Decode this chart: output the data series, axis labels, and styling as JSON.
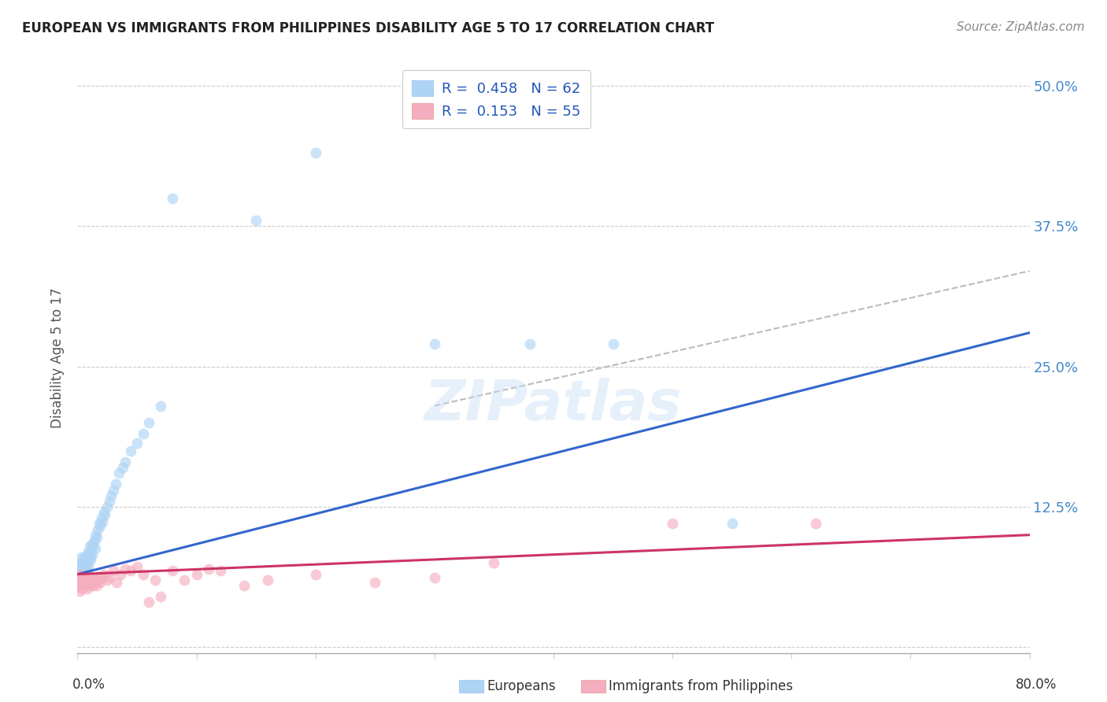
{
  "title": "EUROPEAN VS IMMIGRANTS FROM PHILIPPINES DISABILITY AGE 5 TO 17 CORRELATION CHART",
  "source": "Source: ZipAtlas.com",
  "ylabel": "Disability Age 5 to 17",
  "legend_europeans": "Europeans",
  "legend_philippines": "Immigrants from Philippines",
  "r_european": "0.458",
  "n_european": "62",
  "r_philippines": "0.153",
  "n_philippines": "55",
  "european_color": "#aed4f5",
  "philippines_color": "#f5aec0",
  "european_line_color": "#3366cc",
  "philippines_line_color": "#cc3366",
  "dashed_line_color": "#aaaaaa",
  "watermark": "ZIPatlas",
  "xlim": [
    0.0,
    0.8
  ],
  "ylim": [
    -0.005,
    0.52
  ],
  "yticks": [
    0.0,
    0.125,
    0.25,
    0.375,
    0.5
  ],
  "ytick_labels_right": [
    "",
    "12.5%",
    "25.0%",
    "37.5%",
    "50.0%"
  ],
  "xtick_positions": [
    0.0,
    0.1,
    0.2,
    0.3,
    0.4,
    0.5,
    0.6,
    0.7,
    0.8
  ],
  "europeans_x": [
    0.001,
    0.001,
    0.002,
    0.002,
    0.002,
    0.003,
    0.003,
    0.003,
    0.004,
    0.004,
    0.004,
    0.005,
    0.005,
    0.005,
    0.006,
    0.006,
    0.006,
    0.007,
    0.007,
    0.008,
    0.008,
    0.008,
    0.009,
    0.009,
    0.01,
    0.01,
    0.011,
    0.011,
    0.012,
    0.012,
    0.013,
    0.014,
    0.015,
    0.015,
    0.016,
    0.017,
    0.018,
    0.019,
    0.02,
    0.021,
    0.022,
    0.023,
    0.025,
    0.027,
    0.028,
    0.03,
    0.032,
    0.035,
    0.038,
    0.04,
    0.045,
    0.05,
    0.055,
    0.06,
    0.07,
    0.08,
    0.15,
    0.2,
    0.3,
    0.38,
    0.45,
    0.55
  ],
  "europeans_y": [
    0.065,
    0.07,
    0.06,
    0.075,
    0.068,
    0.072,
    0.065,
    0.08,
    0.068,
    0.075,
    0.062,
    0.07,
    0.078,
    0.065,
    0.072,
    0.068,
    0.08,
    0.075,
    0.07,
    0.082,
    0.068,
    0.075,
    0.085,
    0.072,
    0.08,
    0.09,
    0.078,
    0.085,
    0.092,
    0.082,
    0.09,
    0.095,
    0.1,
    0.088,
    0.098,
    0.105,
    0.11,
    0.108,
    0.115,
    0.112,
    0.12,
    0.118,
    0.125,
    0.13,
    0.135,
    0.14,
    0.145,
    0.155,
    0.16,
    0.165,
    0.175,
    0.182,
    0.19,
    0.2,
    0.215,
    0.4,
    0.38,
    0.44,
    0.27,
    0.27,
    0.27,
    0.11
  ],
  "philippines_x": [
    0.001,
    0.001,
    0.002,
    0.002,
    0.003,
    0.003,
    0.004,
    0.004,
    0.005,
    0.005,
    0.006,
    0.006,
    0.007,
    0.007,
    0.008,
    0.008,
    0.009,
    0.01,
    0.01,
    0.011,
    0.012,
    0.013,
    0.014,
    0.015,
    0.016,
    0.017,
    0.018,
    0.019,
    0.02,
    0.022,
    0.025,
    0.027,
    0.03,
    0.033,
    0.036,
    0.04,
    0.045,
    0.05,
    0.055,
    0.06,
    0.065,
    0.07,
    0.08,
    0.09,
    0.1,
    0.11,
    0.12,
    0.14,
    0.16,
    0.2,
    0.25,
    0.3,
    0.35,
    0.5,
    0.62
  ],
  "philippines_y": [
    0.055,
    0.06,
    0.05,
    0.065,
    0.055,
    0.06,
    0.052,
    0.058,
    0.055,
    0.062,
    0.057,
    0.063,
    0.055,
    0.06,
    0.052,
    0.058,
    0.06,
    0.055,
    0.062,
    0.057,
    0.06,
    0.055,
    0.058,
    0.062,
    0.055,
    0.06,
    0.063,
    0.058,
    0.062,
    0.065,
    0.06,
    0.062,
    0.068,
    0.058,
    0.065,
    0.07,
    0.068,
    0.072,
    0.065,
    0.04,
    0.06,
    0.045,
    0.068,
    0.06,
    0.065,
    0.07,
    0.068,
    0.055,
    0.06,
    0.065,
    0.058,
    0.062,
    0.075,
    0.11,
    0.11
  ]
}
